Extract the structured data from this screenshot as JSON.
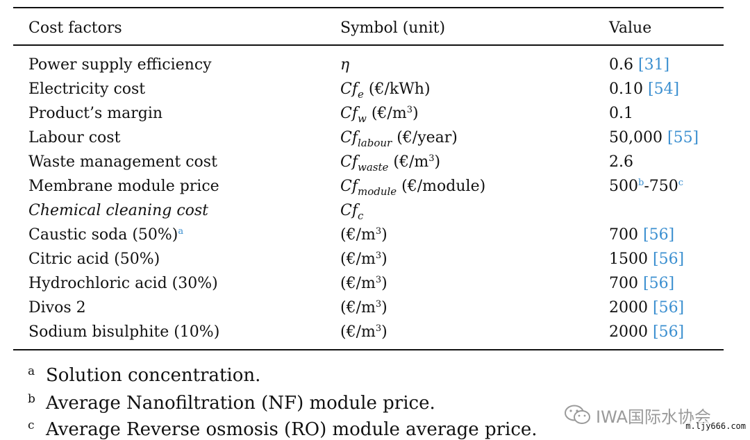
{
  "header": {
    "cost_factors": "Cost factors",
    "symbol": "Symbol (unit)",
    "value": "Value"
  },
  "rows": [
    {
      "factor": "Power supply efficiency",
      "sym": "η",
      "sub": "",
      "unit": "",
      "value": "0.6 ",
      "ref": "[31]"
    },
    {
      "factor": "Electricity cost",
      "sym": "Cf",
      "sub": "e",
      "unit": " (€/kWh)",
      "value": "0.10 ",
      "ref": "[54]"
    },
    {
      "factor": "Product’s margin",
      "sym": "Cf",
      "sub": "w",
      "unit": " (€/m",
      "unit_sup": "3",
      "unit_end": ")",
      "value": "0.1",
      "ref": ""
    },
    {
      "factor": "Labour cost",
      "sym": "Cf",
      "sub": "labour",
      "unit": " (€/year)",
      "value": "50,000 ",
      "ref": "[55]"
    },
    {
      "factor": "Waste management cost",
      "sym": "Cf",
      "sub": "waste",
      "unit": " (€/m",
      "unit_sup": "3",
      "unit_end": ")",
      "value": "2.6",
      "ref": ""
    },
    {
      "factor": "Membrane module price",
      "sym": "Cf",
      "sub": "module",
      "unit": " (€/module)",
      "value_a": "500",
      "sup_b": "b",
      "value_b": "-750",
      "sup_c": "c"
    },
    {
      "factor": "Chemical cleaning cost",
      "sym": "Cf",
      "sub": "c"
    },
    {
      "factor": "Caustic soda (50%)",
      "factor_sup": "a",
      "unit": "(€/m",
      "unit_sup": "3",
      "unit_end": ")",
      "value": "700 ",
      "ref": "[56]"
    },
    {
      "factor": "Citric acid (50%)",
      "unit": "(€/m",
      "unit_sup": "3",
      "unit_end": ")",
      "value": "1500 ",
      "ref": "[56]"
    },
    {
      "factor": "Hydrochloric acid (30%)",
      "unit": "(€/m",
      "unit_sup": "3",
      "unit_end": ")",
      "value": "700 ",
      "ref": "[56]"
    },
    {
      "factor": "Divos 2",
      "unit": "(€/m",
      "unit_sup": "3",
      "unit_end": ")",
      "value": "2000 ",
      "ref": "[56]"
    },
    {
      "factor": "Sodium bisulphite (10%)",
      "unit": "(€/m",
      "unit_sup": "3",
      "unit_end": ")",
      "value": "2000 ",
      "ref": "[56]"
    }
  ],
  "footnotes": [
    {
      "mark": "a",
      "text": "Solution concentration."
    },
    {
      "mark": "b",
      "text": "Average Nanofiltration (NF) module price."
    },
    {
      "mark": "c",
      "text": "Average Reverse osmosis (RO) module average price."
    }
  ],
  "watermark": {
    "text": "IWA国际水协会",
    "url": "m.ljy666.com"
  },
  "colors": {
    "ref": "#3b8fd0"
  }
}
